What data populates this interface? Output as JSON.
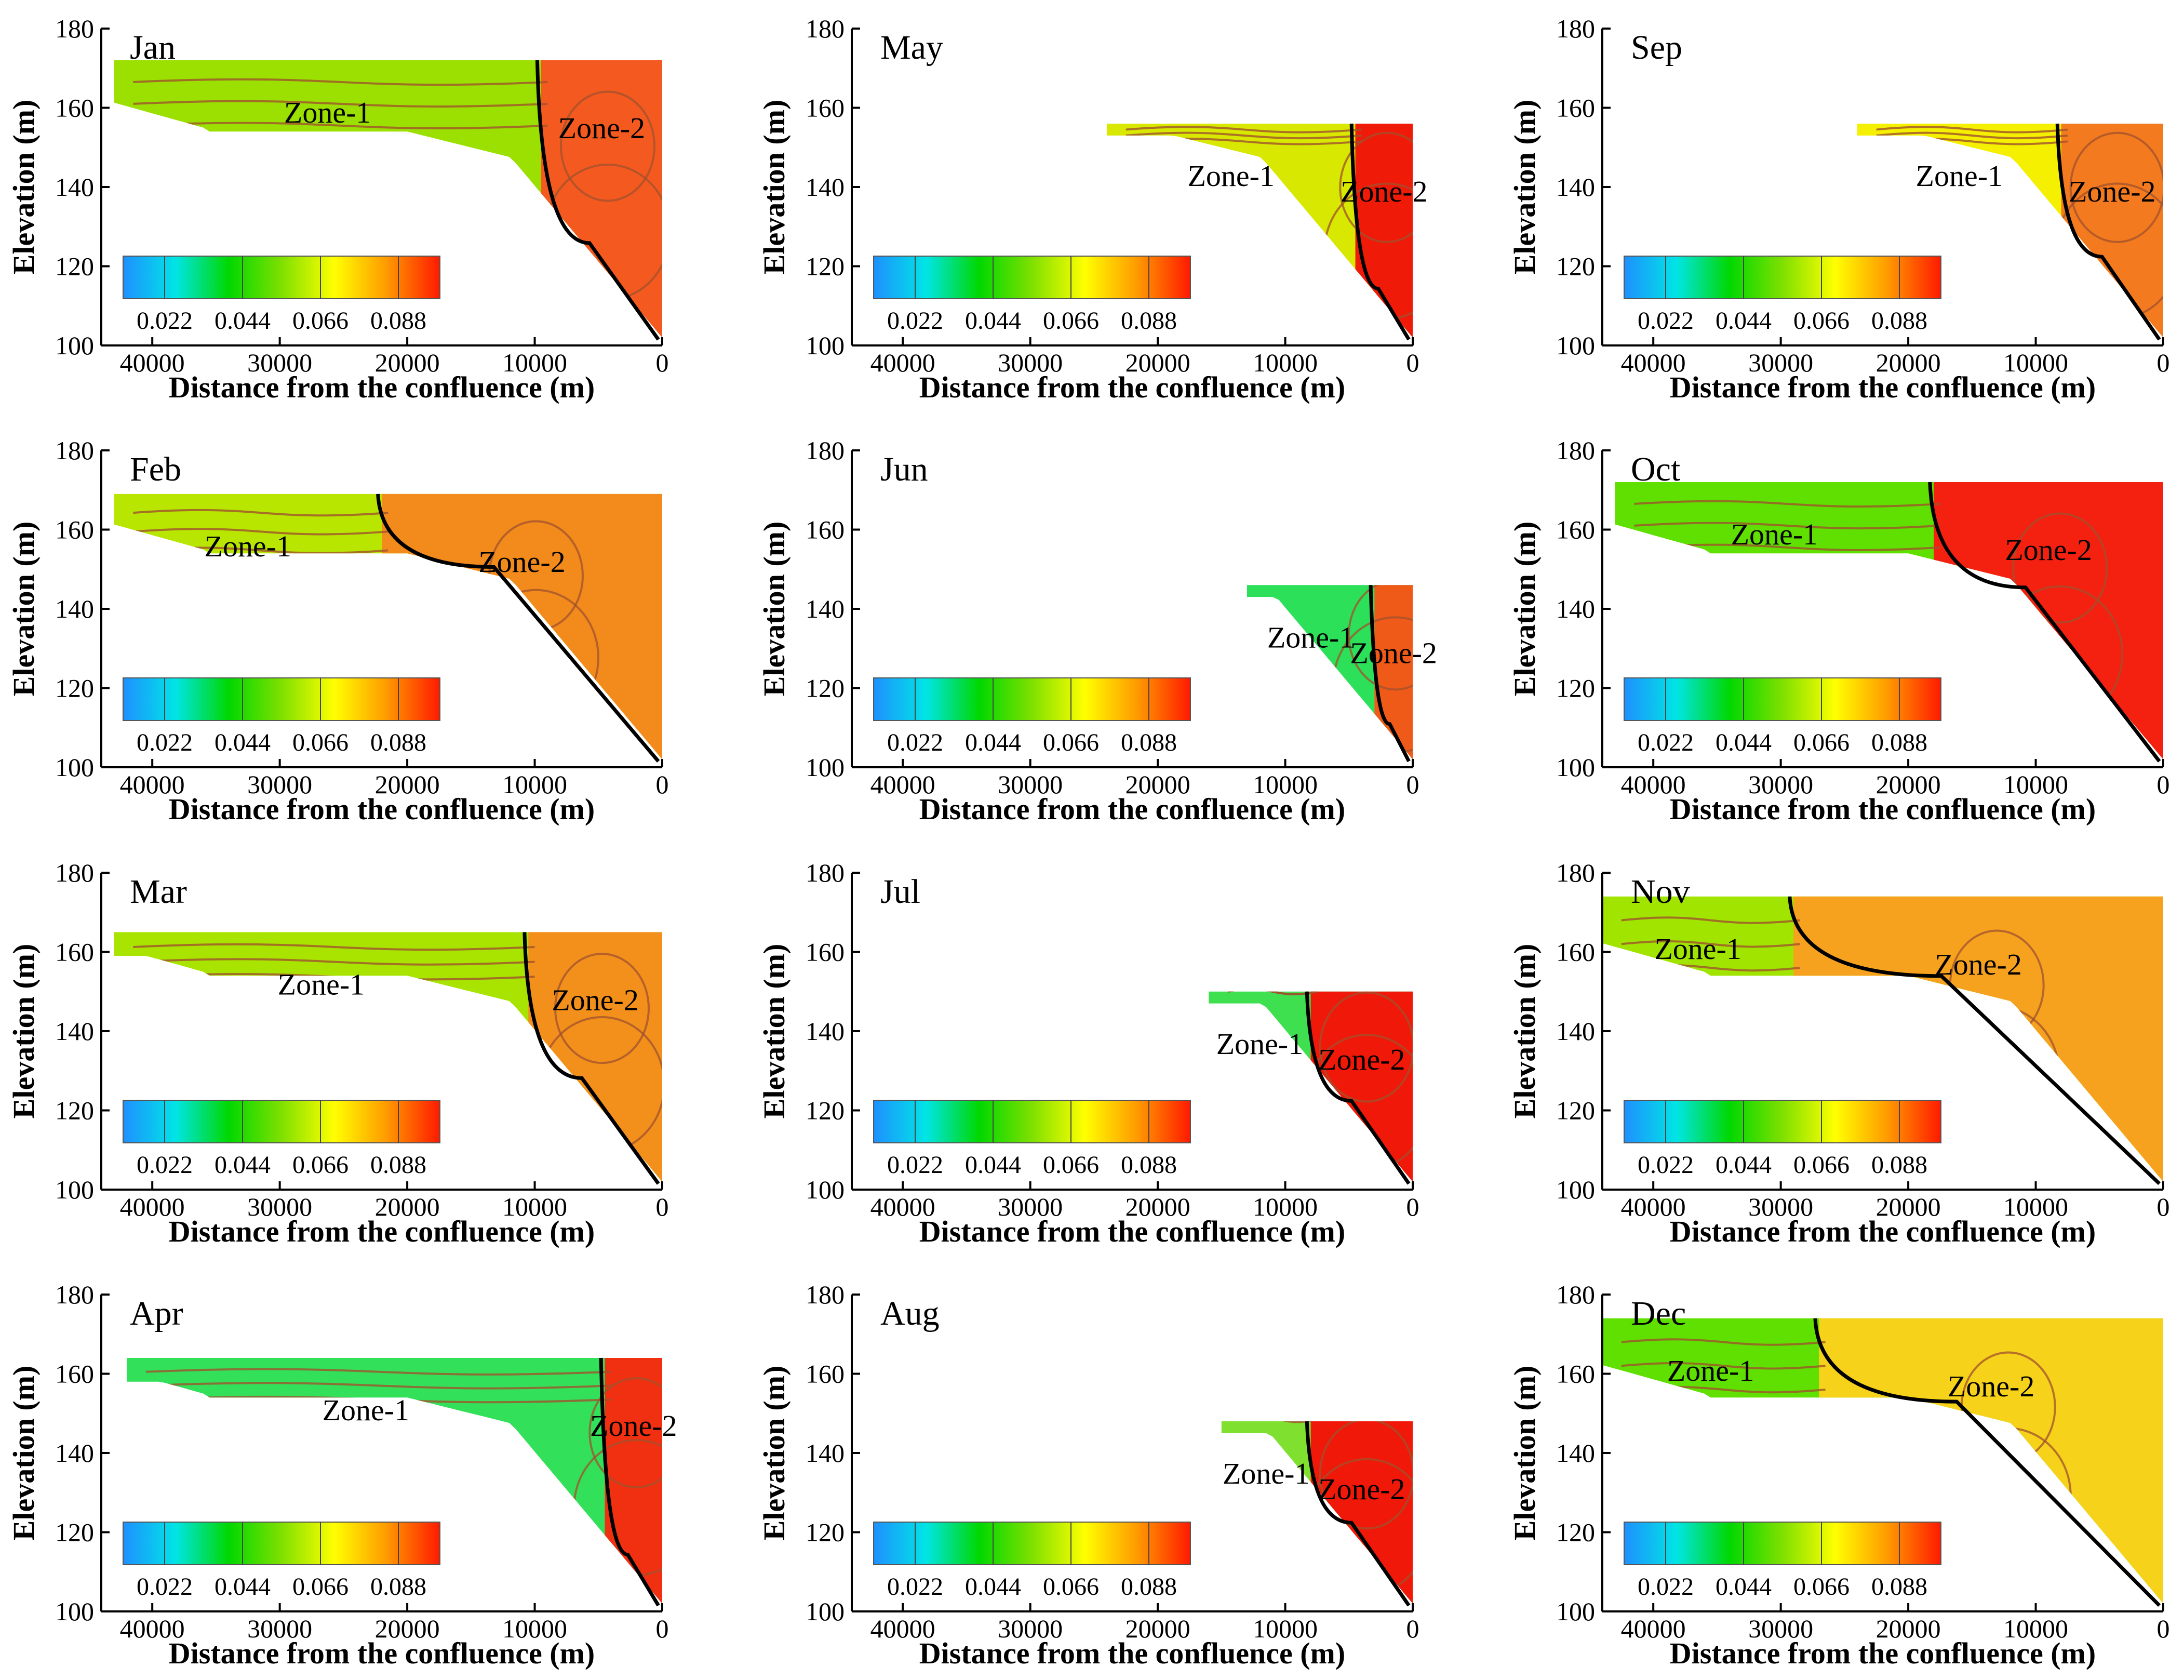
{
  "figure": {
    "ylabel": "Elevation (m)",
    "xlabel": "Distance from the confluence (m)",
    "zone1_label": "Zone-1",
    "zone2_label": "Zone-2",
    "colorbar_ticks": [
      "0.022",
      "0.044",
      "0.066",
      "0.088"
    ],
    "colorbar_colors": [
      "#1e90ff",
      "#00e5e5",
      "#00d800",
      "#7fe000",
      "#ffff00",
      "#ff9900",
      "#ff1a00"
    ]
  },
  "chart_data": [
    {
      "type": "heatmap",
      "title": "Jan",
      "xlim": [
        44000,
        0
      ],
      "ylim": [
        100,
        180
      ],
      "xticks": [
        40000,
        30000,
        20000,
        10000,
        0
      ],
      "yticks": [
        100,
        120,
        140,
        160,
        180
      ],
      "water_level": 172,
      "upstream_start": 43000,
      "zone_boundary_x": 9500,
      "zone1_color": "#9be000",
      "zone2_color": "#f4591f"
    },
    {
      "type": "heatmap",
      "title": "May",
      "xlim": [
        44000,
        0
      ],
      "ylim": [
        100,
        180
      ],
      "xticks": [
        40000,
        30000,
        20000,
        10000,
        0
      ],
      "yticks": [
        100,
        120,
        140,
        160,
        180
      ],
      "water_level": 156,
      "upstream_start": 24000,
      "zone_boundary_x": 4500,
      "zone1_color": "#d8e800",
      "zone2_color": "#f01a08"
    },
    {
      "type": "heatmap",
      "title": "Sep",
      "xlim": [
        44000,
        0
      ],
      "ylim": [
        100,
        180
      ],
      "xticks": [
        40000,
        30000,
        20000,
        10000,
        0
      ],
      "yticks": [
        100,
        120,
        140,
        160,
        180
      ],
      "water_level": 156,
      "upstream_start": 24000,
      "zone_boundary_x": 8000,
      "zone1_color": "#f4f000",
      "zone2_color": "#f47a1f"
    },
    {
      "type": "heatmap",
      "title": "Feb",
      "xlim": [
        44000,
        0
      ],
      "ylim": [
        100,
        180
      ],
      "xticks": [
        40000,
        30000,
        20000,
        10000,
        0
      ],
      "yticks": [
        100,
        120,
        140,
        160,
        180
      ],
      "water_level": 169,
      "upstream_start": 43000,
      "zone_boundary_x": 22000,
      "zone1_color": "#b8e600",
      "zone2_color": "#f38a1c"
    },
    {
      "type": "heatmap",
      "title": "Jun",
      "xlim": [
        44000,
        0
      ],
      "ylim": [
        100,
        180
      ],
      "xticks": [
        40000,
        30000,
        20000,
        10000,
        0
      ],
      "yticks": [
        100,
        120,
        140,
        160,
        180
      ],
      "water_level": 146,
      "upstream_start": 13000,
      "zone_boundary_x": 3000,
      "zone1_color": "#2de05a",
      "zone2_color": "#f05a18"
    },
    {
      "type": "heatmap",
      "title": "Oct",
      "xlim": [
        44000,
        0
      ],
      "ylim": [
        100,
        180
      ],
      "xticks": [
        40000,
        30000,
        20000,
        10000,
        0
      ],
      "yticks": [
        100,
        120,
        140,
        160,
        180
      ],
      "water_level": 172,
      "upstream_start": 43000,
      "zone_boundary_x": 18000,
      "zone1_color": "#5fe000",
      "zone2_color": "#f42010"
    },
    {
      "type": "heatmap",
      "title": "Mar",
      "xlim": [
        44000,
        0
      ],
      "ylim": [
        100,
        180
      ],
      "xticks": [
        40000,
        30000,
        20000,
        10000,
        0
      ],
      "yticks": [
        100,
        120,
        140,
        160,
        180
      ],
      "water_level": 165,
      "upstream_start": 43000,
      "zone_boundary_x": 10500,
      "zone1_color": "#a8e400",
      "zone2_color": "#f3901c"
    },
    {
      "type": "heatmap",
      "title": "Jul",
      "xlim": [
        44000,
        0
      ],
      "ylim": [
        100,
        180
      ],
      "xticks": [
        40000,
        30000,
        20000,
        10000,
        0
      ],
      "yticks": [
        100,
        120,
        140,
        160,
        180
      ],
      "water_level": 150,
      "upstream_start": 16000,
      "zone_boundary_x": 8000,
      "zone1_color": "#3fe050",
      "zone2_color": "#f01808"
    },
    {
      "type": "heatmap",
      "title": "Nov",
      "xlim": [
        44000,
        0
      ],
      "ylim": [
        100,
        180
      ],
      "xticks": [
        40000,
        30000,
        20000,
        10000,
        0
      ],
      "yticks": [
        100,
        120,
        140,
        160,
        180
      ],
      "water_level": 174,
      "upstream_start": 44000,
      "zone_boundary_x": 29000,
      "zone1_color": "#a0e400",
      "zone2_color": "#f7a21f"
    },
    {
      "type": "heatmap",
      "title": "Apr",
      "xlim": [
        44000,
        0
      ],
      "ylim": [
        100,
        180
      ],
      "xticks": [
        40000,
        30000,
        20000,
        10000,
        0
      ],
      "yticks": [
        100,
        120,
        140,
        160,
        180
      ],
      "water_level": 164,
      "upstream_start": 42000,
      "zone_boundary_x": 4500,
      "zone1_color": "#32e05a",
      "zone2_color": "#f03010"
    },
    {
      "type": "heatmap",
      "title": "Aug",
      "xlim": [
        44000,
        0
      ],
      "ylim": [
        100,
        180
      ],
      "xticks": [
        40000,
        30000,
        20000,
        10000,
        0
      ],
      "yticks": [
        100,
        120,
        140,
        160,
        180
      ],
      "water_level": 148,
      "upstream_start": 15000,
      "zone_boundary_x": 8000,
      "zone1_color": "#7fe030",
      "zone2_color": "#f01808"
    },
    {
      "type": "heatmap",
      "title": "Dec",
      "xlim": [
        44000,
        0
      ],
      "ylim": [
        100,
        180
      ],
      "xticks": [
        40000,
        30000,
        20000,
        10000,
        0
      ],
      "yticks": [
        100,
        120,
        140,
        160,
        180
      ],
      "water_level": 174,
      "upstream_start": 44000,
      "zone_boundary_x": 27000,
      "zone1_color": "#5fe000",
      "zone2_color": "#f7d21a"
    }
  ]
}
